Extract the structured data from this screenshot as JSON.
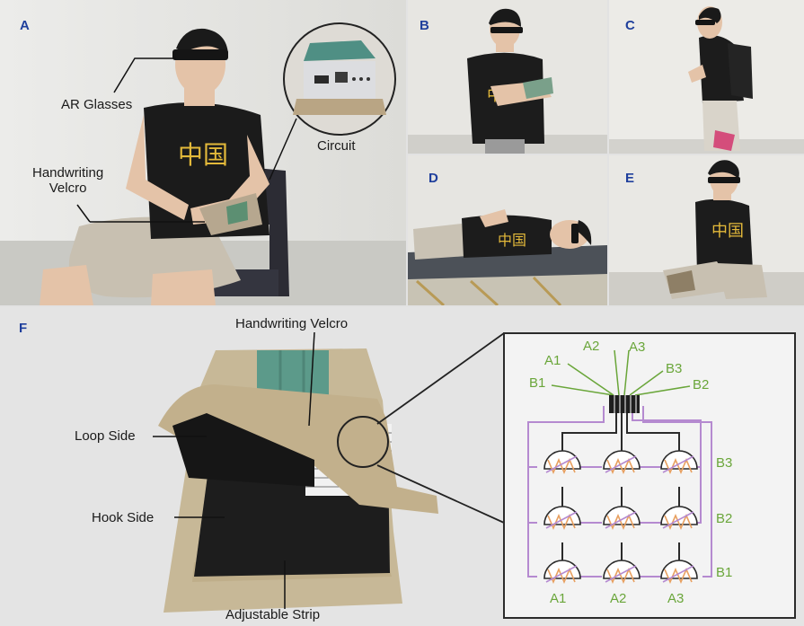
{
  "panels": {
    "A": {
      "letter": "A",
      "labels": {
        "ar_glasses": "AR Glasses",
        "circuit": "Circuit",
        "handwriting_velcro": "Handwriting\nVelcro"
      }
    },
    "B": {
      "letter": "B"
    },
    "C": {
      "letter": "C"
    },
    "D": {
      "letter": "D"
    },
    "E": {
      "letter": "E"
    },
    "F": {
      "letter": "F",
      "labels": {
        "handwriting_velcro": "Handwriting Velcro",
        "loop_side": "Loop Side",
        "hook_side": "Hook Side",
        "adjustable_strip": "Adjustable Strip"
      },
      "schematic": {
        "top_pins_left": [
          "A1",
          "B1"
        ],
        "top_pins_mid": [
          "A2",
          "A3"
        ],
        "top_pins_right": [
          "B3",
          "B2"
        ],
        "row_labels": [
          "B3",
          "B2",
          "B1"
        ],
        "column_labels": [
          "A1",
          "A2",
          "A3"
        ]
      }
    }
  },
  "colors": {
    "panel_letter": "#1f3f9c",
    "schematic_green": "#6aa63a",
    "schematic_purple": "#b58ad0",
    "sensor_orange": "#e8a060"
  }
}
